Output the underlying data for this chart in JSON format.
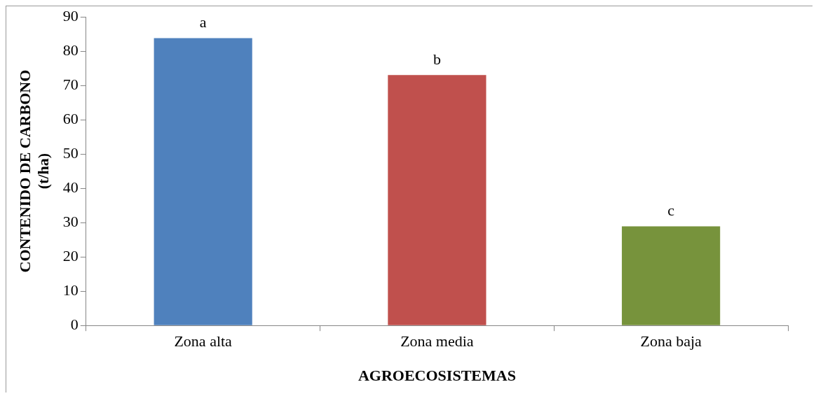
{
  "chart_data": {
    "type": "bar",
    "xlabel": "AGROECOSISTEMAS",
    "ylabel": "CONTENIDO DE CARBONO\n(t/ha)",
    "categories": [
      "Zona alta",
      "Zona media",
      "Zona baja"
    ],
    "values": [
      83.8,
      73,
      28.9
    ],
    "colors": [
      "#4f81bd",
      "#c0504d",
      "#77933c"
    ],
    "ylim": [
      0,
      90
    ],
    "yticks": [
      0,
      10,
      20,
      30,
      40,
      50,
      60,
      70,
      80,
      90
    ],
    "grid": false,
    "legend": false,
    "annotations": [
      {
        "text": "a",
        "x": "Zona alta",
        "y": 83.8
      },
      {
        "text": "b",
        "x": "Zona media",
        "y": 73
      },
      {
        "text": "c",
        "x": "Zona baja",
        "y": 28.9
      }
    ]
  }
}
